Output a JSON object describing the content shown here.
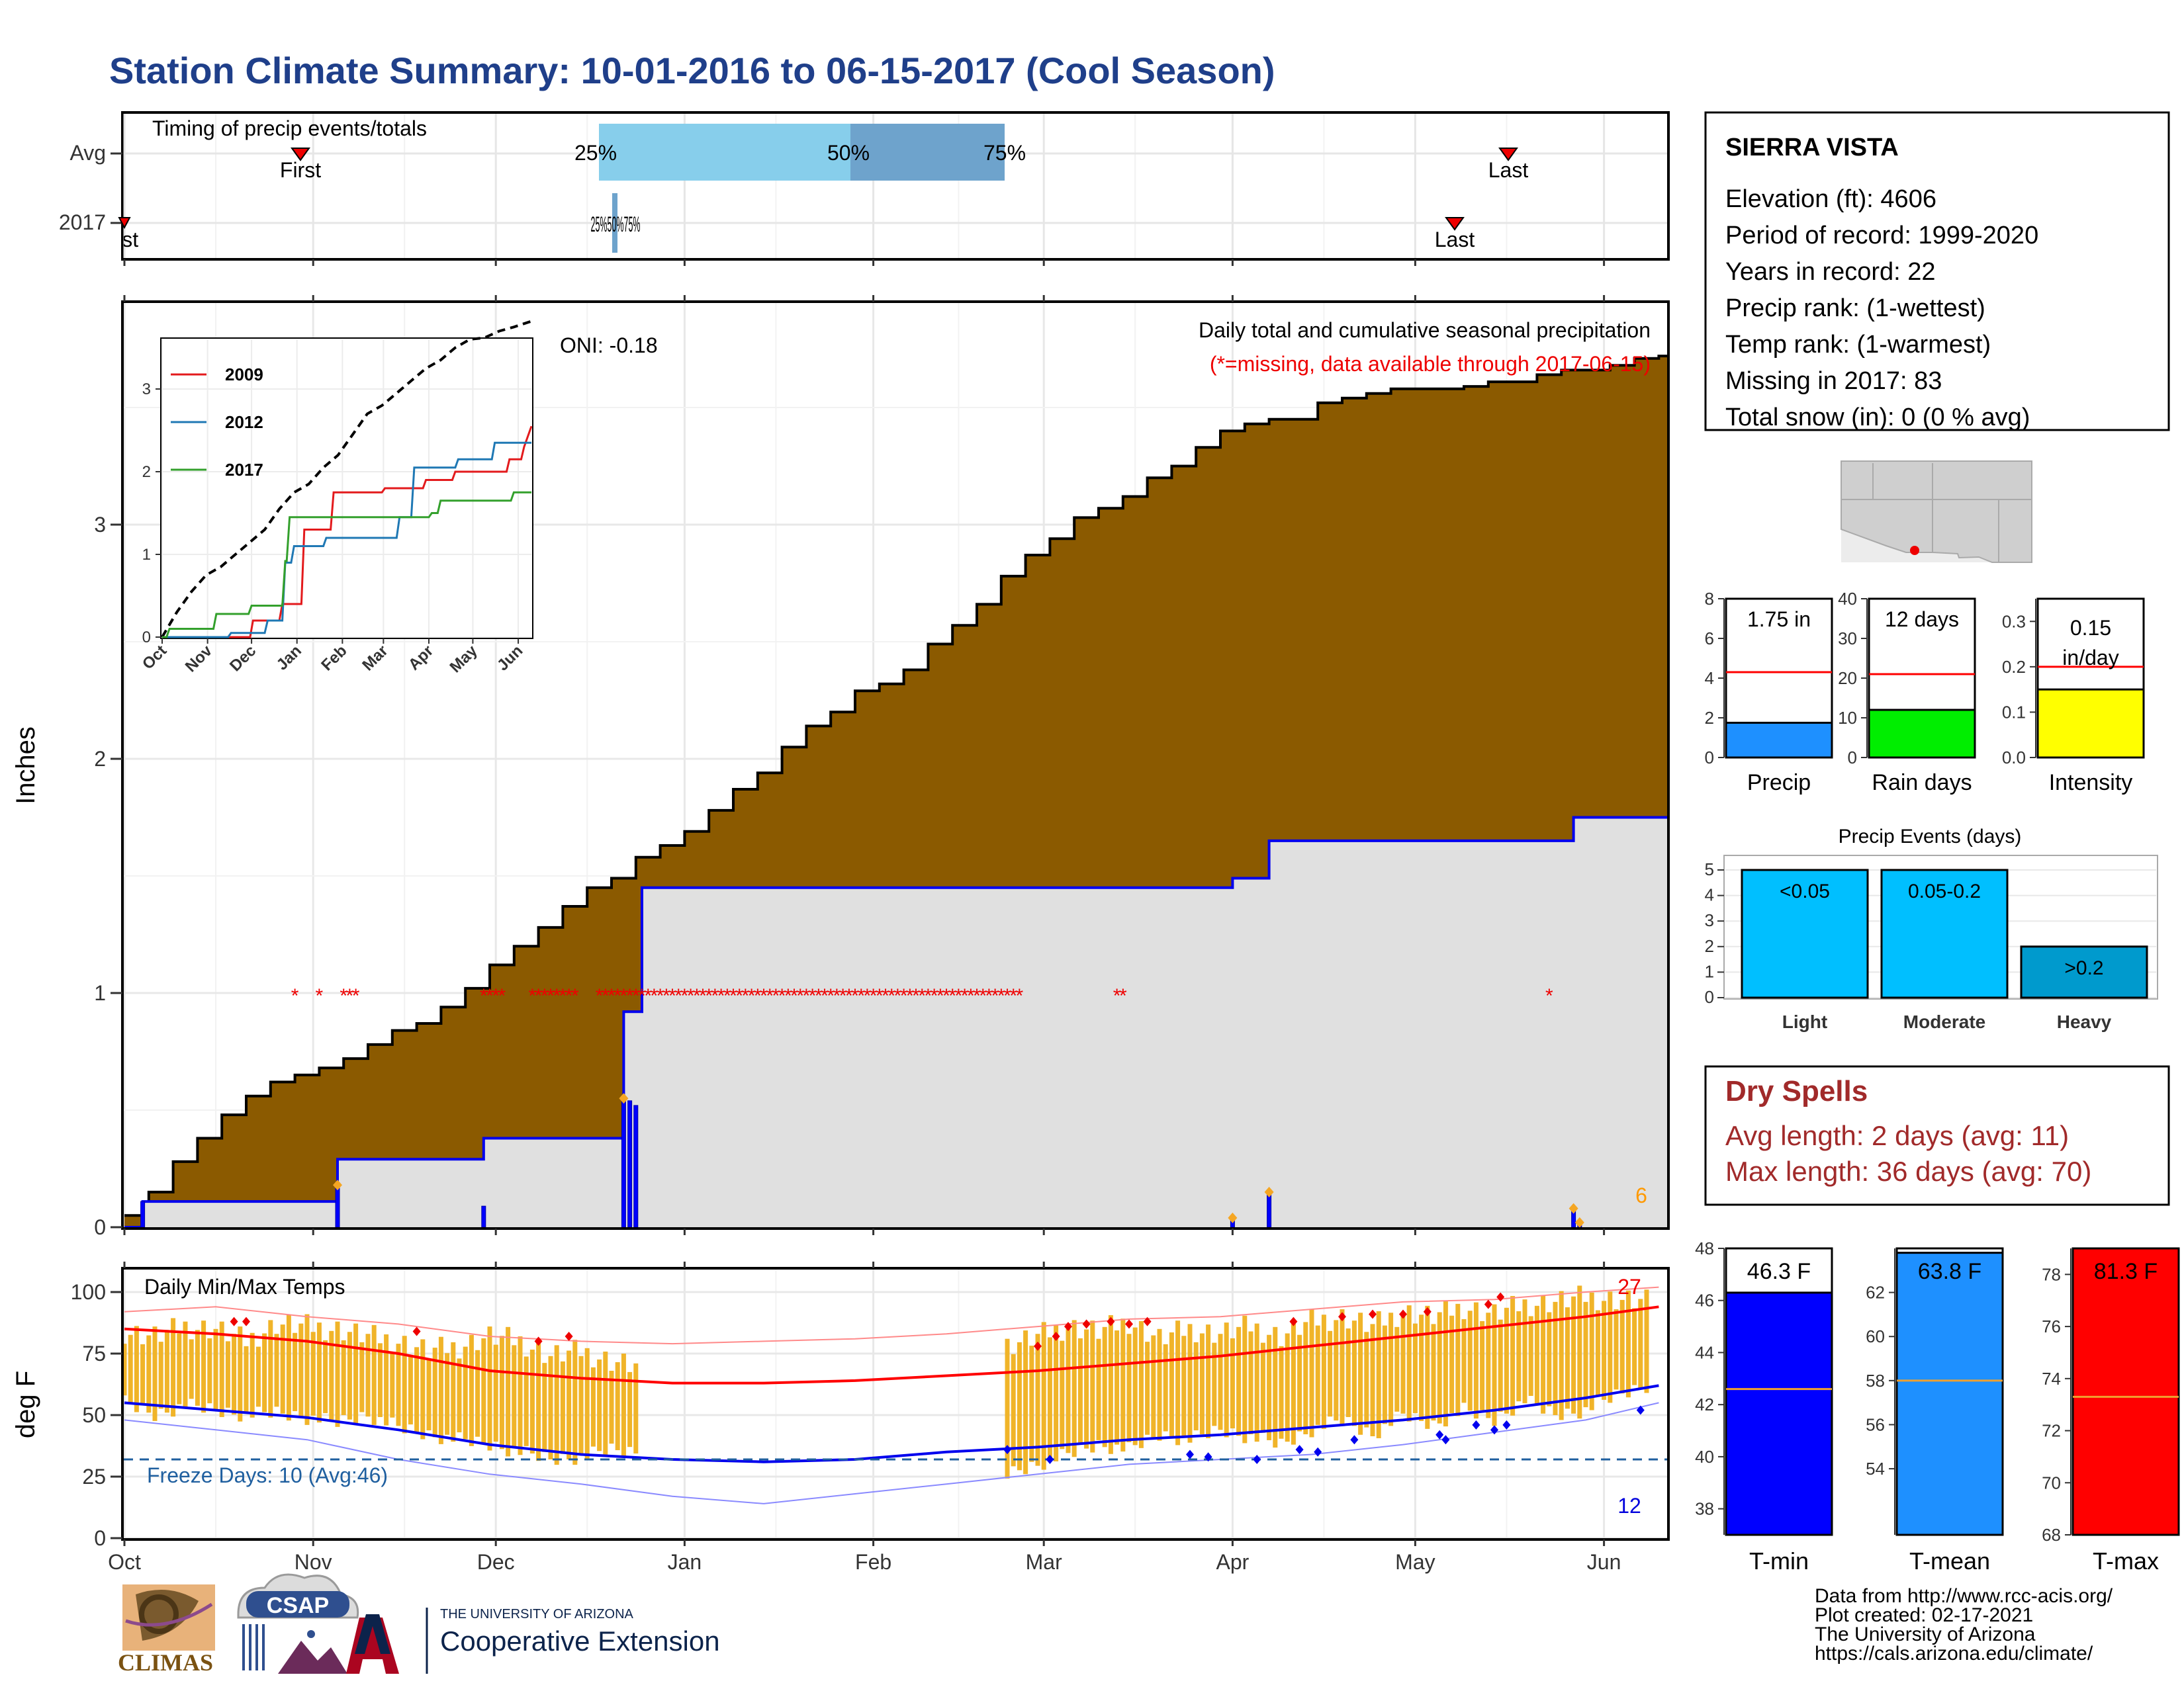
{
  "title": "Station Climate Summary: 10-01-2016 to 06-15-2017 (Cool Season)",
  "timing": {
    "label": "Timing of precip events/totals",
    "rows": [
      "Avg",
      "2017"
    ],
    "avg_first": "First",
    "avg_last": "Last",
    "yr_first": "First",
    "yr_last": "Last",
    "p25": "25%",
    "p50": "50%",
    "p75": "75%",
    "yr_pct_overlap": "25%50%75%"
  },
  "months": [
    "Oct",
    "Nov",
    "Dec",
    "Jan",
    "Feb",
    "Mar",
    "Apr",
    "May",
    "Jun"
  ],
  "main": {
    "ylabel": "Inches",
    "title": "Daily total and cumulative seasonal precipitation",
    "subtitle": "(*=missing, data available through 2017-06-15)",
    "oni": "ONI: -0.18",
    "count_label": "6",
    "yticks": [
      "0",
      "1",
      "2",
      "3"
    ]
  },
  "inset": {
    "legend": [
      "2009",
      "2012",
      "2017"
    ],
    "colors": [
      "#e31a1c",
      "#1f78b4",
      "#33a02c"
    ],
    "yticks": [
      "0",
      "1",
      "2",
      "3"
    ]
  },
  "station": {
    "name": "SIERRA VISTA",
    "lines": [
      "Elevation (ft): 4606",
      "Period of record: 1999-2020",
      "Years in record: 22",
      "Precip rank:  (1-wettest)",
      "Temp rank:  (1-warmest)",
      "Missing in 2017: 83",
      "Total snow (in): 0 (0 % avg)"
    ]
  },
  "summary_bars": [
    {
      "label": "Precip",
      "value_label": "1.75 in",
      "value": 1.75,
      "avg": 4.3,
      "max": 8,
      "ticks": [
        "0",
        "2",
        "4",
        "6",
        "8"
      ],
      "color": "#1e90ff"
    },
    {
      "label": "Rain days",
      "value_label": "12 days",
      "value": 12,
      "avg": 21,
      "max": 40,
      "ticks": [
        "0",
        "10",
        "20",
        "30",
        "40"
      ],
      "color": "#00ee00"
    },
    {
      "label": "Intensity",
      "value_label": "0.15 in/day",
      "value_label_1": "0.15",
      "value_label_2": "in/day",
      "value": 0.15,
      "avg": 0.2,
      "max": 0.35,
      "ticks": [
        "0.0",
        "0.1",
        "0.2",
        "0.3"
      ],
      "color": "#ffff00"
    }
  ],
  "events": {
    "title": "Precip Events (days)",
    "yticks": [
      "0",
      "1",
      "2",
      "3",
      "4",
      "5"
    ],
    "bars": [
      {
        "label": "Light",
        "value_label": "<0.05",
        "value": 5,
        "color": "#00bfff"
      },
      {
        "label": "Moderate",
        "value_label": "0.05-0.2",
        "value": 5,
        "color": "#00bfff"
      },
      {
        "label": "Heavy",
        "value_label": ">0.2",
        "value": 2,
        "color": "#009acd"
      }
    ]
  },
  "dry_spells": {
    "title": "Dry Spells",
    "avg": "Avg length: 2 days (avg: 11)",
    "max": "Max length: 36 days (avg: 70)"
  },
  "temps": {
    "ylabel": "deg F",
    "title": "Daily Min/Max Temps",
    "freeze": "Freeze Days: 10 (Avg:46)",
    "hot_count": "27",
    "cold_count": "12",
    "yticks": [
      "0",
      "25",
      "50",
      "75",
      "100"
    ]
  },
  "temp_bars": [
    {
      "label": "T-min",
      "value_label": "46.3 F",
      "value": 46.3,
      "avg": 42.6,
      "min": 37,
      "max": 48,
      "ticks": [
        "38",
        "40",
        "42",
        "44",
        "46",
        "48"
      ],
      "color": "#0000ff"
    },
    {
      "label": "T-mean",
      "value_label": "63.8 F",
      "value": 63.8,
      "avg": 58.0,
      "min": 51,
      "max": 64,
      "ticks": [
        "54",
        "56",
        "58",
        "60",
        "62"
      ],
      "color": "#1e90ff"
    },
    {
      "label": "T-max",
      "value_label": "81.3 F",
      "value": 81.3,
      "avg": 73.3,
      "min": 68,
      "max": 79,
      "ticks": [
        "68",
        "70",
        "72",
        "74",
        "76",
        "78"
      ],
      "color": "#ff0000"
    }
  ],
  "credits": [
    "Data from http://www.rcc-acis.org/",
    "Plot created: 02-17-2021",
    "The University of Arizona",
    "https://cals.arizona.edu/climate/"
  ],
  "logos": {
    "climas": "CLIMAS",
    "csap": "CSAP",
    "ua_small": "THE UNIVERSITY OF ARIZONA",
    "ua_big": "Cooperative Extension"
  },
  "chart_data": [
    {
      "type": "area",
      "title": "Daily total and cumulative seasonal precipitation",
      "ylabel": "Inches",
      "ylim": [
        0,
        3.9
      ],
      "x_unit": "days since Oct 1 2016",
      "avg_cumulative": {
        "x": [
          0,
          4,
          8,
          12,
          16,
          20,
          24,
          28,
          32,
          36,
          40,
          44,
          48,
          52,
          56,
          60,
          64,
          68,
          72,
          76,
          80,
          84,
          88,
          92,
          96,
          100,
          104,
          108,
          112,
          116,
          120,
          124,
          128,
          132,
          136,
          140,
          144,
          148,
          152,
          156,
          160,
          164,
          168,
          172,
          176,
          180,
          184,
          188,
          192,
          196,
          200,
          204,
          208,
          212,
          216,
          220,
          224,
          228,
          232,
          236,
          240,
          244,
          248,
          252
        ],
        "y": [
          0.05,
          0.15,
          0.28,
          0.38,
          0.48,
          0.56,
          0.62,
          0.65,
          0.68,
          0.72,
          0.78,
          0.84,
          0.87,
          0.94,
          1.02,
          1.12,
          1.2,
          1.28,
          1.37,
          1.45,
          1.49,
          1.58,
          1.63,
          1.69,
          1.78,
          1.87,
          1.94,
          2.05,
          2.14,
          2.2,
          2.29,
          2.32,
          2.38,
          2.49,
          2.57,
          2.66,
          2.78,
          2.87,
          2.94,
          3.03,
          3.07,
          3.12,
          3.2,
          3.25,
          3.33,
          3.4,
          3.43,
          3.45,
          3.45,
          3.52,
          3.54,
          3.56,
          3.58,
          3.58,
          3.58,
          3.59,
          3.61,
          3.61,
          3.64,
          3.66,
          3.66,
          3.68,
          3.71,
          3.72
        ]
      },
      "season_cumulative_2017": {
        "x": [
          0,
          3,
          3,
          35,
          35,
          59,
          59,
          82,
          82,
          85,
          85,
          182,
          182,
          188,
          188,
          238,
          238,
          252
        ],
        "y": [
          0,
          0,
          0.11,
          0.11,
          0.29,
          0.29,
          0.38,
          0.38,
          0.92,
          0.92,
          1.45,
          1.45,
          1.49,
          1.49,
          1.65,
          1.65,
          1.75,
          1.75
        ]
      },
      "daily_precip_2017": {
        "x": [
          3,
          35,
          59,
          82,
          83,
          84,
          182,
          188,
          238,
          239
        ],
        "y": [
          0.11,
          0.18,
          0.09,
          0.55,
          0.54,
          0.52,
          0.04,
          0.15,
          0.08,
          0.02
        ]
      },
      "missing_days": [
        28,
        32,
        36,
        37,
        38,
        59,
        60,
        61,
        62,
        67,
        68,
        69,
        70,
        71,
        72,
        73,
        74,
        78,
        79,
        80,
        81,
        82,
        83,
        84,
        85,
        86,
        87,
        88,
        89,
        90,
        91,
        92,
        93,
        94,
        95,
        96,
        97,
        98,
        99,
        100,
        101,
        102,
        103,
        104,
        105,
        106,
        107,
        108,
        109,
        110,
        111,
        112,
        113,
        114,
        115,
        116,
        117,
        118,
        119,
        120,
        121,
        122,
        123,
        124,
        125,
        126,
        127,
        128,
        129,
        130,
        131,
        132,
        133,
        134,
        135,
        136,
        137,
        138,
        139,
        140,
        141,
        142,
        143,
        144,
        145,
        146,
        147,
        163,
        164,
        234
      ]
    },
    {
      "type": "line",
      "title": "inset cumulative precip",
      "xlabel": "",
      "ylim": [
        0,
        3.85
      ],
      "months": [
        "Oct",
        "Nov",
        "Dec",
        "Jan",
        "Feb",
        "Mar",
        "Apr",
        "May",
        "Jun"
      ],
      "series": [
        {
          "name": "avg",
          "x": [
            0,
            10,
            20,
            30,
            40,
            50,
            60,
            70,
            80,
            90,
            100,
            110,
            120,
            130,
            140,
            150,
            160,
            170,
            180,
            190,
            200,
            210,
            220,
            230,
            240,
            252
          ],
          "y": [
            0.0,
            0.3,
            0.55,
            0.75,
            0.85,
            1.0,
            1.15,
            1.3,
            1.55,
            1.75,
            1.85,
            2.05,
            2.2,
            2.45,
            2.7,
            2.8,
            2.95,
            3.1,
            3.25,
            3.35,
            3.5,
            3.6,
            3.62,
            3.7,
            3.75,
            3.82
          ]
        },
        {
          "name": "2009",
          "x": [
            0,
            60,
            62,
            80,
            82,
            95,
            97,
            115,
            117,
            150,
            152,
            178,
            180,
            198,
            200,
            235,
            237,
            245,
            247,
            252
          ],
          "y": [
            0.0,
            0.0,
            0.2,
            0.2,
            0.4,
            0.4,
            1.3,
            1.3,
            1.75,
            1.75,
            1.8,
            1.8,
            1.9,
            1.9,
            2.0,
            2.0,
            2.15,
            2.15,
            2.3,
            2.55
          ]
        },
        {
          "name": "2012",
          "x": [
            0,
            45,
            47,
            70,
            72,
            82,
            84,
            88,
            90,
            110,
            112,
            160,
            162,
            170,
            172,
            200,
            202,
            225,
            227,
            252
          ],
          "y": [
            0.0,
            0.0,
            0.05,
            0.05,
            0.2,
            0.2,
            0.9,
            0.9,
            1.1,
            1.1,
            1.2,
            1.2,
            1.45,
            1.45,
            2.05,
            2.05,
            2.15,
            2.15,
            2.35,
            2.35
          ]
        },
        {
          "name": "2017",
          "x": [
            0,
            3,
            5,
            35,
            37,
            59,
            61,
            82,
            84,
            85,
            87,
            182,
            184,
            188,
            190,
            238,
            240,
            252
          ],
          "y": [
            0.0,
            0.0,
            0.1,
            0.1,
            0.28,
            0.28,
            0.38,
            0.38,
            0.92,
            0.92,
            1.45,
            1.45,
            1.5,
            1.5,
            1.65,
            1.65,
            1.75,
            1.75
          ]
        }
      ]
    },
    {
      "type": "line",
      "title": "Daily Min/Max Temps",
      "ylabel": "deg F",
      "ylim": [
        0,
        108
      ],
      "freeze_line": 32,
      "avg_max": {
        "x": [
          0,
          15,
          30,
          45,
          60,
          75,
          90,
          105,
          120,
          135,
          150,
          165,
          180,
          195,
          210,
          225,
          240,
          252
        ],
        "y": [
          85,
          83,
          80,
          75,
          68,
          65,
          63,
          63,
          64,
          66,
          68,
          71,
          74,
          78,
          82,
          86,
          90,
          94
        ]
      },
      "avg_min": {
        "x": [
          0,
          15,
          30,
          45,
          60,
          75,
          90,
          105,
          120,
          135,
          150,
          165,
          180,
          195,
          210,
          225,
          240,
          252
        ],
        "y": [
          55,
          52,
          49,
          44,
          38,
          34,
          32,
          31,
          32,
          35,
          37,
          40,
          42,
          45,
          48,
          52,
          57,
          62
        ]
      },
      "record_max": {
        "x": [
          0,
          15,
          30,
          45,
          60,
          75,
          90,
          105,
          120,
          135,
          150,
          165,
          180,
          195,
          210,
          225,
          240,
          252
        ],
        "y": [
          92,
          94,
          90,
          87,
          82,
          80,
          79,
          80,
          81,
          83,
          86,
          89,
          90,
          93,
          96,
          97,
          100,
          102
        ]
      },
      "record_min": {
        "x": [
          0,
          15,
          30,
          45,
          60,
          75,
          90,
          105,
          120,
          135,
          150,
          165,
          180,
          195,
          210,
          225,
          240,
          252
        ],
        "y": [
          48,
          44,
          40,
          32,
          26,
          22,
          17,
          14,
          18,
          22,
          26,
          30,
          32,
          34,
          38,
          43,
          48,
          55
        ]
      },
      "daily_2017": {
        "x": [
          0,
          5,
          10,
          15,
          20,
          25,
          30,
          35,
          40,
          45,
          50,
          55,
          60,
          65,
          70,
          75,
          80,
          84,
          145,
          150,
          155,
          160,
          165,
          170,
          175,
          180,
          185,
          190,
          195,
          200,
          205,
          210,
          215,
          220,
          225,
          230,
          235,
          240,
          245,
          250
        ],
        "min": [
          55,
          50,
          54,
          52,
          50,
          51,
          49,
          47,
          50,
          45,
          42,
          40,
          38,
          35,
          32,
          33,
          36,
          35,
          26,
          30,
          34,
          38,
          36,
          42,
          40,
          44,
          41,
          38,
          44,
          48,
          42,
          50,
          46,
          52,
          48,
          56,
          50,
          52,
          58,
          62
        ],
        "max": [
          84,
          82,
          86,
          85,
          80,
          87,
          86,
          85,
          82,
          80,
          76,
          78,
          82,
          80,
          74,
          76,
          72,
          70,
          78,
          82,
          86,
          84,
          88,
          81,
          85,
          83,
          86,
          82,
          88,
          90,
          86,
          92,
          90,
          94,
          91,
          95,
          96,
          98,
          97,
          96
        ]
      }
    },
    {
      "type": "bar",
      "title": "Precip Events (days)",
      "categories": [
        "Light",
        "Moderate",
        "Heavy"
      ],
      "values": [
        5,
        5,
        2
      ],
      "ylim": [
        0,
        5.3
      ]
    }
  ]
}
